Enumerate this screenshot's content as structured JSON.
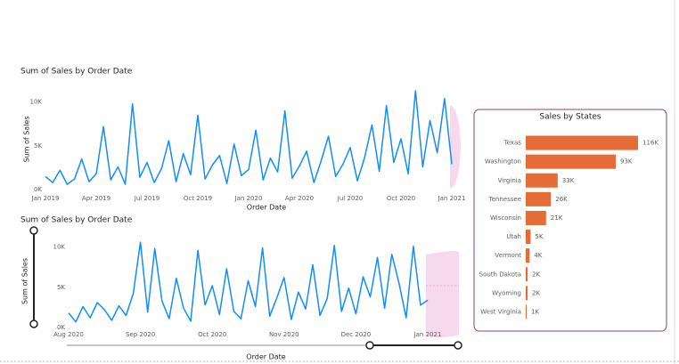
{
  "chart_data": [
    {
      "type": "line",
      "title": "Sum of Sales by Order Date",
      "y_label": "Sum of Sales",
      "x_label": "Order Date",
      "color": "#118dff",
      "categories": [
        "Jan 2019",
        null,
        null,
        null,
        null,
        null,
        null,
        "Apr 2019",
        null,
        null,
        null,
        null,
        null,
        null,
        "Jul 2019",
        null,
        null,
        null,
        null,
        null,
        null,
        "Oct 2019",
        null,
        null,
        null,
        null,
        null,
        null,
        "Jan 2020",
        null,
        null,
        null,
        null,
        null,
        null,
        "Apr 2020",
        null,
        null,
        null,
        null,
        null,
        null,
        "Jul 2020",
        null,
        null,
        null,
        null,
        null,
        null,
        "Oct 2020",
        null,
        null,
        null,
        null,
        null,
        null,
        "Jan 2021"
      ],
      "values": [
        1500,
        800,
        2200,
        600,
        1200,
        3500,
        900,
        1800,
        7200,
        1100,
        2600,
        600,
        9800,
        1400,
        3100,
        800,
        2400,
        5600,
        900,
        4100,
        1700,
        8500,
        1200,
        2800,
        3900,
        700,
        5200,
        1600,
        2300,
        6800,
        1100,
        3600,
        2000,
        9000,
        1300,
        2700,
        4400,
        800,
        3300,
        6100,
        1500,
        2900,
        4800,
        1000,
        3700,
        7400,
        2100,
        9600,
        3100,
        5800,
        1800,
        11300,
        2600,
        7900,
        4200,
        10400,
        2900
      ],
      "ylim": [
        0,
        11500
      ],
      "yticks": [
        {
          "value": 0,
          "label": "0K"
        },
        {
          "value": 5000,
          "label": "5K"
        },
        {
          "value": 10000,
          "label": "10K"
        }
      ]
    },
    {
      "type": "line",
      "title": "Sum of Sales by Order Date",
      "y_label": "Sum of Sales",
      "x_label": "Order Date",
      "color": "#118dff",
      "categories": [
        "Aug 2020",
        null,
        null,
        null,
        null,
        null,
        null,
        null,
        null,
        null,
        "Sep 2020",
        null,
        null,
        null,
        null,
        null,
        null,
        null,
        null,
        null,
        "Oct 2020",
        null,
        null,
        null,
        null,
        null,
        null,
        null,
        null,
        null,
        "Nov 2020",
        null,
        null,
        null,
        null,
        null,
        null,
        null,
        null,
        null,
        "Dec 2020",
        null,
        null,
        null,
        null,
        null,
        null,
        null,
        null,
        null,
        "Jan 2021"
      ],
      "values": [
        1800,
        700,
        2600,
        1200,
        3100,
        2200,
        900,
        2700,
        1500,
        4200,
        10600,
        1900,
        9800,
        3300,
        1100,
        6100,
        2400,
        800,
        9600,
        2800,
        5200,
        1600,
        7300,
        2000,
        1100,
        5800,
        2600,
        9900,
        1400,
        3700,
        6200,
        1000,
        4400,
        2300,
        7800,
        1500,
        3600,
        10200,
        2000,
        4900,
        1700,
        6300,
        3800,
        8700,
        2400,
        9100,
        5500,
        1200,
        10100,
        2800,
        3400
      ],
      "ylim": [
        0,
        11500
      ],
      "yticks": [
        {
          "value": 0,
          "label": "0K"
        },
        {
          "value": 5000,
          "label": "5K"
        },
        {
          "value": 10000,
          "label": "10K"
        }
      ]
    },
    {
      "type": "hbar",
      "title": "Sales by States",
      "color": "#e66c37",
      "categories": [
        "Texas",
        "Washington",
        "Virginia",
        "Tennessee",
        "Wisconsin",
        "Utah",
        "Vermont",
        "South Dakota",
        "Wyoming",
        "West Virginia"
      ],
      "values": [
        116000,
        93000,
        33000,
        26000,
        21000,
        5000,
        4000,
        2000,
        2000,
        1000
      ],
      "value_labels": [
        "116K",
        "93K",
        "33K",
        "26K",
        "21K",
        "5K",
        "4K",
        "2K",
        "2K",
        "1K"
      ]
    }
  ]
}
